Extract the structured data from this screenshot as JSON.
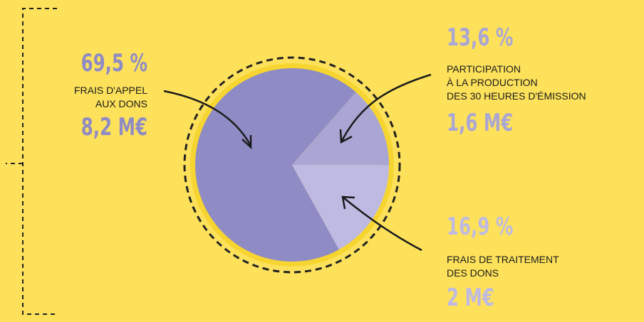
{
  "chart_data": {
    "type": "pie",
    "categories": [
      [
        "FRAIS D'APPEL",
        "AUX DONS"
      ],
      [
        "PARTICIPATION",
        "À LA PRODUCTION",
        "DES 30 HEURES D'ÉMISSION"
      ],
      [
        "FRAIS DE TRAITEMENT",
        "DES DONS"
      ]
    ],
    "values": [
      69.5,
      13.6,
      16.9
    ],
    "value_labels": [
      "69,5 %",
      "13,6 %",
      "16,9 %"
    ],
    "amounts": [
      "8,2 M€",
      "1,6 M€",
      "2 M€"
    ],
    "colors": [
      "#8f8bc4",
      "#aaa6d4",
      "#bfbae2"
    ]
  }
}
